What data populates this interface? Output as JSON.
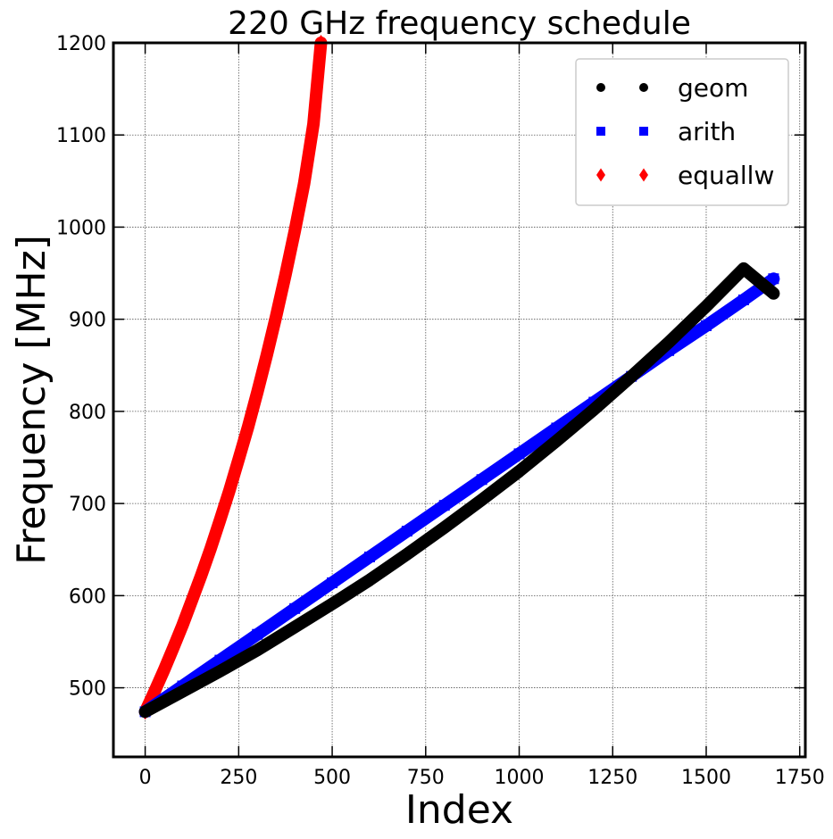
{
  "chart_data": {
    "type": "scatter",
    "title": "220 GHz frequency schedule",
    "xlabel": "Index",
    "ylabel": "Frequency [MHz]",
    "xlim": [
      -85,
      1765
    ],
    "ylim": [
      425,
      1200
    ],
    "xticks": [
      0,
      250,
      500,
      750,
      1000,
      1250,
      1500,
      1750
    ],
    "yticks": [
      500,
      600,
      700,
      800,
      900,
      1000,
      1100,
      1200
    ],
    "xtick_labels": [
      "0",
      "250",
      "500",
      "750",
      "1000",
      "1250",
      "1500",
      "1750"
    ],
    "ytick_labels": [
      "500",
      "600",
      "700",
      "800",
      "900",
      "1000",
      "1100",
      "1200"
    ],
    "grid": true,
    "legend_position": "top-right",
    "series": [
      {
        "name": "geom",
        "color": "#000000",
        "marker": "circle",
        "x": [
          0,
          100,
          200,
          300,
          400,
          500,
          600,
          700,
          800,
          900,
          1000,
          1100,
          1200,
          1300,
          1400,
          1500,
          1600,
          1680
        ],
        "y": [
          474,
          496,
          518,
          541,
          566,
          591,
          617,
          645,
          674,
          704,
          735,
          768,
          802,
          838,
          875,
          914,
          955,
          928
        ]
      },
      {
        "name": "arith",
        "color": "#0000ff",
        "marker": "square",
        "x": [
          0,
          100,
          200,
          300,
          400,
          500,
          600,
          700,
          800,
          900,
          1000,
          1100,
          1200,
          1300,
          1400,
          1500,
          1600,
          1680
        ],
        "y": [
          474,
          502,
          530,
          558,
          586,
          614,
          642,
          670,
          698,
          726,
          754,
          782,
          810,
          838,
          866,
          893,
          921,
          944
        ]
      },
      {
        "name": "equallw",
        "color": "#ff0000",
        "marker": "diamond",
        "x": [
          0,
          25,
          50,
          75,
          100,
          125,
          150,
          175,
          200,
          225,
          250,
          275,
          300,
          325,
          350,
          375,
          400,
          425,
          450,
          470
        ],
        "y": [
          474,
          496,
          519,
          543,
          568,
          595,
          622,
          651,
          682,
          714,
          748,
          783,
          821,
          861,
          903,
          948,
          996,
          1047,
          1112,
          1200
        ]
      }
    ]
  }
}
